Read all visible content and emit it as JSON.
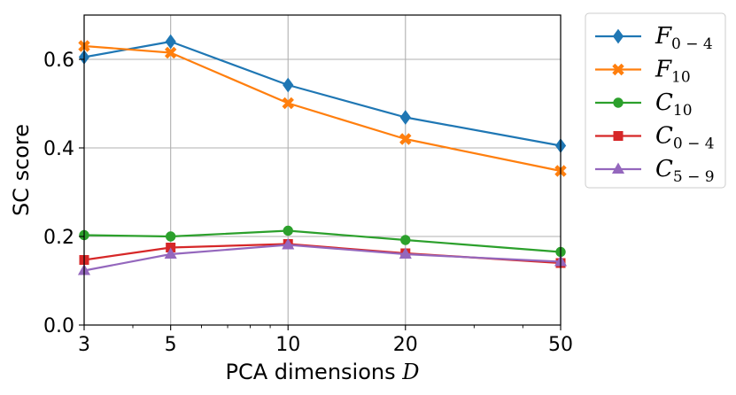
{
  "chart_data": {
    "type": "line",
    "title": "",
    "xlabel": "PCA dimensions",
    "xlabel_var": "D",
    "ylabel": "SC score",
    "xscale": "log",
    "x": [
      3,
      5,
      10,
      20,
      50
    ],
    "x_ticks": [
      "3",
      "5",
      "10",
      "20",
      "50"
    ],
    "xlim": [
      3,
      50
    ],
    "ylim": [
      0.0,
      0.7
    ],
    "y_ticks": [
      "0.0",
      "0.2",
      "0.4",
      "0.6"
    ],
    "grid": true,
    "legend_position": "outside-right",
    "series": [
      {
        "name": "F",
        "sub": "0 − 4",
        "marker": "diamond",
        "color": "#1f77b4",
        "values": [
          0.605,
          0.64,
          0.542,
          0.469,
          0.405
        ]
      },
      {
        "name": "F",
        "sub": "10",
        "marker": "x-filled",
        "color": "#ff7f0e",
        "values": [
          0.63,
          0.615,
          0.501,
          0.42,
          0.348
        ]
      },
      {
        "name": "C",
        "sub": "10",
        "marker": "circle",
        "color": "#2ca02c",
        "values": [
          0.203,
          0.2,
          0.213,
          0.192,
          0.165
        ]
      },
      {
        "name": "C",
        "sub": "0 − 4",
        "marker": "square",
        "color": "#d62728",
        "values": [
          0.147,
          0.175,
          0.183,
          0.162,
          0.14
        ]
      },
      {
        "name": "C",
        "sub": "5 − 9",
        "marker": "triangle",
        "color": "#9467bd",
        "values": [
          0.123,
          0.16,
          0.181,
          0.16,
          0.143
        ]
      }
    ]
  }
}
